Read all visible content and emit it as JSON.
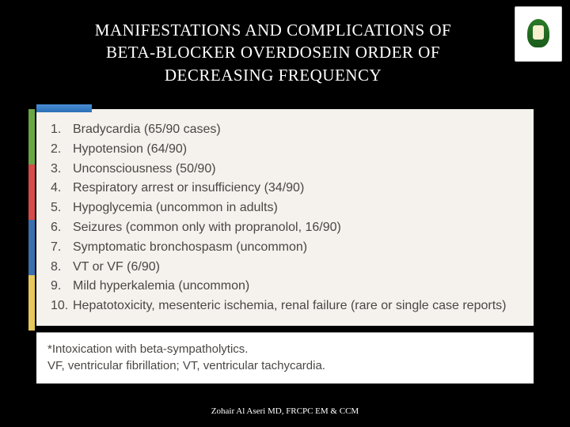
{
  "title": {
    "line1": "MANIFESTATIONS AND COMPLICATIONS OF",
    "line2": "BETA-BLOCKER OVERDOSEIN ORDER OF",
    "line3": "DECREASING FREQUENCY"
  },
  "logo": {
    "name": "king-saud-university-logo"
  },
  "list": {
    "background_color": "#f5f1ed",
    "text_color": "#4a4744",
    "font_size": 16,
    "items": [
      "Bradycardia (65/90 cases)",
      "Hypotension (64/90)",
      "Unconsciousness (50/90)",
      "Respiratory arrest or insufficiency (34/90)",
      "Hypoglycemia (uncommon in adults)",
      "Seizures (common only with propranolol, 16/90)",
      "Symptomatic bronchospasm (uncommon)",
      "VT or VF (6/90)",
      "Mild hyperkalemia (uncommon)",
      "Hepatotoxicity, mesenteric ischemia, renal failure (rare or single case reports)"
    ]
  },
  "footnote": {
    "line1": "*Intoxication with beta-sympatholytics.",
    "line2": "VF, ventricular fibrillation; VT, ventricular tachycardia."
  },
  "author": "Zohair Al Aseri MD, FRCPC EM & CCM",
  "colors": {
    "slide_bg": "#000000",
    "title_color": "#ffffff",
    "panel_bg": "#f5f1ed",
    "footnote_bg": "#ffffff",
    "strip": [
      "#6ba644",
      "#d94a4a",
      "#3a6fb0",
      "#e6c95a"
    ]
  }
}
